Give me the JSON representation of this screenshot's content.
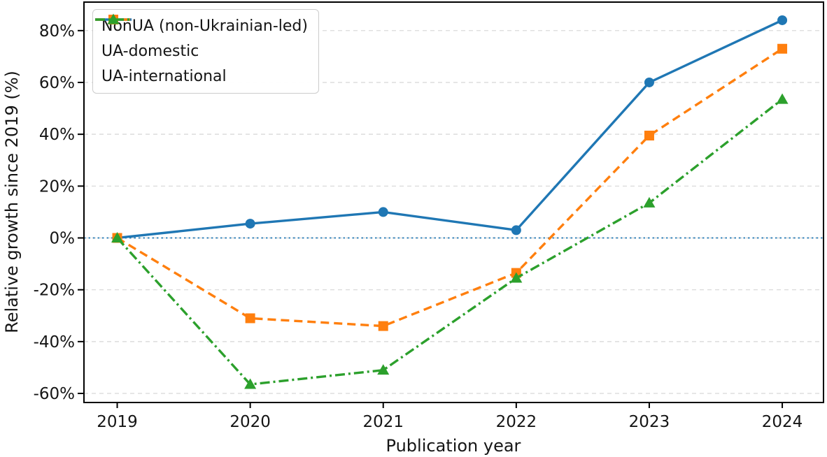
{
  "chart_data": {
    "type": "line",
    "title": "",
    "xlabel": "Publication year",
    "ylabel": "Relative growth since 2019 (%)",
    "x": [
      2019,
      2020,
      2021,
      2022,
      2023,
      2024
    ],
    "x_ticks": [
      {
        "value": 2019,
        "label": "2019"
      },
      {
        "value": 2020,
        "label": "2020"
      },
      {
        "value": 2021,
        "label": "2021"
      },
      {
        "value": 2022,
        "label": "2022"
      },
      {
        "value": 2023,
        "label": "2023"
      },
      {
        "value": 2024,
        "label": "2024"
      }
    ],
    "y_ticks": [
      {
        "value": 80,
        "label": "80%"
      },
      {
        "value": 60,
        "label": "60%"
      },
      {
        "value": 40,
        "label": "40%"
      },
      {
        "value": 20,
        "label": "20%"
      },
      {
        "value": 0,
        "label": "0%"
      },
      {
        "value": -20,
        "label": "-20%"
      },
      {
        "value": -40,
        "label": "-40%"
      },
      {
        "value": -60,
        "label": "-60%"
      }
    ],
    "xlim": [
      2018.75,
      2024.31
    ],
    "ylim": [
      -63.5,
      91
    ],
    "grid": {
      "axis": "y",
      "color": "#d6d6d6",
      "style": "dashed"
    },
    "zero_line": {
      "y": 0,
      "color": "#1f77b4",
      "style": "dotted"
    },
    "legend_position": "upper-left",
    "series": [
      {
        "name": "NonUA (non-Ukrainian-led)",
        "color": "#1f77b4",
        "linestyle": "solid",
        "marker": "circle",
        "values": [
          0,
          5.5,
          10,
          3,
          60,
          84
        ]
      },
      {
        "name": "UA-domestic",
        "color": "#ff7f0e",
        "linestyle": "dashed",
        "marker": "square",
        "values": [
          0,
          -31,
          -34,
          -13.5,
          39.5,
          73
        ]
      },
      {
        "name": "UA-international",
        "color": "#2ca02c",
        "linestyle": "dashdot",
        "marker": "triangle",
        "values": [
          0,
          -56.5,
          -51,
          -15.5,
          13.5,
          53.5
        ]
      }
    ]
  }
}
